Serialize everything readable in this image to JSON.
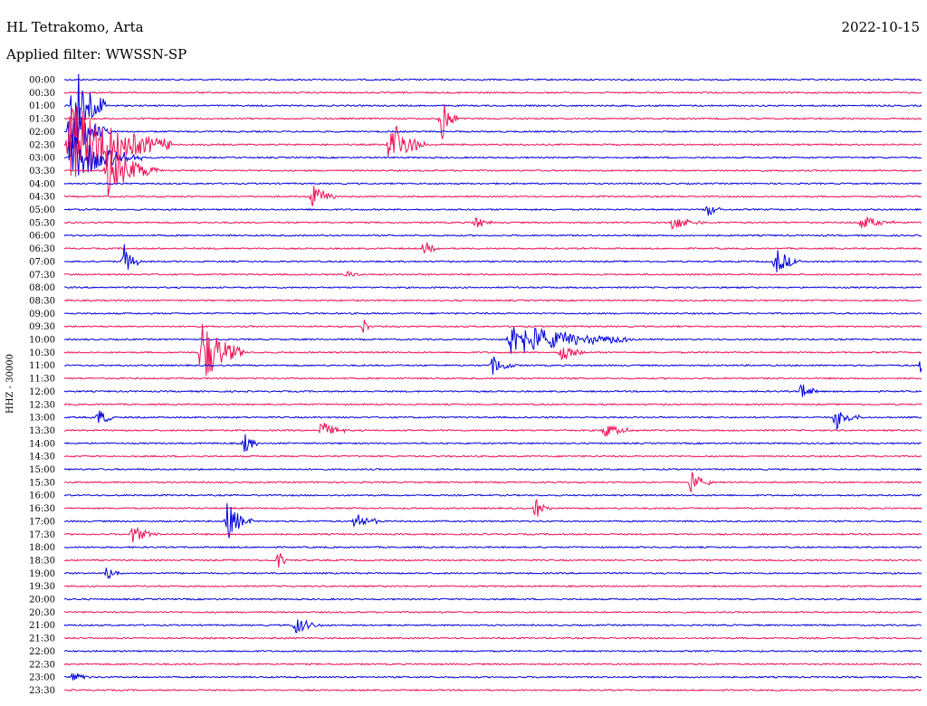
{
  "header": {
    "station": "HL Tetrakomo, Arta",
    "filter": "Applied filter: WWSSN-SP",
    "date": "2022-10-15"
  },
  "chart_data": {
    "type": "line",
    "title": "HL Tetrakomo, Arta",
    "subtitle": "Applied filter: WWSSN-SP",
    "ylabel": "HHZ - 30000",
    "xlabel": "",
    "grid": false,
    "rows": [
      "00:00",
      "00:30",
      "01:00",
      "01:30",
      "02:00",
      "02:30",
      "03:00",
      "03:30",
      "04:00",
      "04:30",
      "05:00",
      "05:30",
      "06:00",
      "06:30",
      "07:00",
      "07:30",
      "08:00",
      "08:30",
      "09:00",
      "09:30",
      "10:00",
      "10:30",
      "11:00",
      "11:30",
      "12:00",
      "12:30",
      "13:00",
      "13:30",
      "14:00",
      "14:30",
      "15:00",
      "15:30",
      "16:00",
      "16:30",
      "17:00",
      "17:30",
      "18:00",
      "18:30",
      "19:00",
      "19:30",
      "20:00",
      "20:30",
      "21:00",
      "21:30",
      "22:00",
      "22:30",
      "23:00",
      "23:30"
    ],
    "colors": [
      "#0000dd",
      "#ee1155"
    ],
    "events": [
      {
        "row": 2,
        "pos": 0.01,
        "amp": 4.0,
        "dur": 0.04
      },
      {
        "row": 4,
        "pos": 0.005,
        "amp": 2.5,
        "dur": 0.05
      },
      {
        "row": 5,
        "pos": 0.005,
        "amp": 3.5,
        "dur": 0.12
      },
      {
        "row": 6,
        "pos": 0.01,
        "amp": 2.0,
        "dur": 0.08
      },
      {
        "row": 7,
        "pos": 0.05,
        "amp": 2.2,
        "dur": 0.06
      },
      {
        "row": 3,
        "pos": 0.44,
        "amp": 2.0,
        "dur": 0.02
      },
      {
        "row": 5,
        "pos": 0.38,
        "amp": 2.4,
        "dur": 0.04
      },
      {
        "row": 9,
        "pos": 0.29,
        "amp": 1.0,
        "dur": 0.03
      },
      {
        "row": 10,
        "pos": 0.75,
        "amp": 0.6,
        "dur": 0.02
      },
      {
        "row": 11,
        "pos": 0.48,
        "amp": 0.7,
        "dur": 0.02
      },
      {
        "row": 11,
        "pos": 0.71,
        "amp": 0.7,
        "dur": 0.04
      },
      {
        "row": 11,
        "pos": 0.93,
        "amp": 0.6,
        "dur": 0.04
      },
      {
        "row": 13,
        "pos": 0.42,
        "amp": 0.6,
        "dur": 0.02
      },
      {
        "row": 14,
        "pos": 0.07,
        "amp": 1.3,
        "dur": 0.02
      },
      {
        "row": 14,
        "pos": 0.83,
        "amp": 1.1,
        "dur": 0.03
      },
      {
        "row": 15,
        "pos": 0.33,
        "amp": 0.6,
        "dur": 0.02
      },
      {
        "row": 19,
        "pos": 0.35,
        "amp": 1.2,
        "dur": 0.005
      },
      {
        "row": 20,
        "pos": 0.52,
        "amp": 1.4,
        "dur": 0.15
      },
      {
        "row": 21,
        "pos": 0.16,
        "amp": 2.8,
        "dur": 0.05
      },
      {
        "row": 21,
        "pos": 0.58,
        "amp": 0.8,
        "dur": 0.03
      },
      {
        "row": 22,
        "pos": 0.5,
        "amp": 0.8,
        "dur": 0.03
      },
      {
        "row": 22,
        "pos": 1.0,
        "amp": 0.8,
        "dur": 0.01
      },
      {
        "row": 24,
        "pos": 0.86,
        "amp": 0.8,
        "dur": 0.02
      },
      {
        "row": 26,
        "pos": 0.04,
        "amp": 0.8,
        "dur": 0.02
      },
      {
        "row": 26,
        "pos": 0.9,
        "amp": 1.0,
        "dur": 0.03
      },
      {
        "row": 27,
        "pos": 0.3,
        "amp": 0.8,
        "dur": 0.03
      },
      {
        "row": 27,
        "pos": 0.63,
        "amp": 0.6,
        "dur": 0.04
      },
      {
        "row": 28,
        "pos": 0.21,
        "amp": 0.8,
        "dur": 0.02
      },
      {
        "row": 31,
        "pos": 0.73,
        "amp": 0.9,
        "dur": 0.03
      },
      {
        "row": 33,
        "pos": 0.55,
        "amp": 0.8,
        "dur": 0.02
      },
      {
        "row": 34,
        "pos": 0.19,
        "amp": 1.6,
        "dur": 0.03
      },
      {
        "row": 34,
        "pos": 0.34,
        "amp": 0.9,
        "dur": 0.03
      },
      {
        "row": 35,
        "pos": 0.08,
        "amp": 0.8,
        "dur": 0.03
      },
      {
        "row": 37,
        "pos": 0.25,
        "amp": 1.0,
        "dur": 0.01
      },
      {
        "row": 38,
        "pos": 0.05,
        "amp": 0.6,
        "dur": 0.02
      },
      {
        "row": 42,
        "pos": 0.27,
        "amp": 0.8,
        "dur": 0.03
      },
      {
        "row": 46,
        "pos": 0.01,
        "amp": 0.6,
        "dur": 0.02
      }
    ]
  }
}
